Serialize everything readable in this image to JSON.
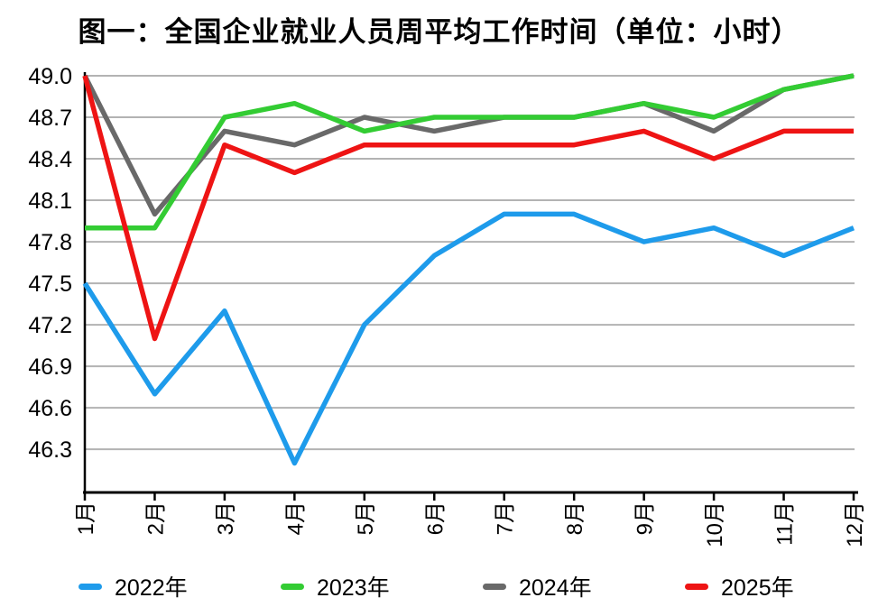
{
  "title": "图一：全国企业就业人员周平均工作时间（单位：小时）",
  "chart_data": {
    "type": "line",
    "title": "图一：全国企业就业人员周平均工作时间（单位：小时）",
    "unit": "小时",
    "categories": [
      "1月",
      "2月",
      "3月",
      "4月",
      "5月",
      "6月",
      "7月",
      "8月",
      "9月",
      "10月",
      "11月",
      "12月"
    ],
    "series": [
      {
        "name": "2022年",
        "color": "#1E9BEB",
        "values": [
          47.5,
          46.7,
          47.3,
          46.2,
          47.2,
          47.7,
          48.0,
          48.0,
          47.8,
          47.9,
          47.7,
          47.9
        ]
      },
      {
        "name": "2023年",
        "color": "#33CC33",
        "values": [
          47.9,
          47.9,
          48.7,
          48.8,
          48.6,
          48.7,
          48.7,
          48.7,
          48.8,
          48.7,
          48.9,
          49.0
        ]
      },
      {
        "name": "2024年",
        "color": "#696969",
        "values": [
          49.0,
          48.0,
          48.6,
          48.5,
          48.7,
          48.6,
          48.7,
          48.7,
          48.8,
          48.6,
          48.9,
          49.0
        ]
      },
      {
        "name": "2025年",
        "color": "#EE1414",
        "values": [
          49.0,
          47.1,
          48.5,
          48.3,
          48.5,
          48.5,
          48.5,
          48.5,
          48.6,
          48.4,
          48.6,
          48.6
        ]
      }
    ],
    "z_order": [
      "2022年",
      "2024年",
      "2023年",
      "2025年"
    ],
    "y_ticks": [
      49.0,
      48.7,
      48.4,
      48.1,
      47.8,
      47.5,
      47.2,
      46.9,
      46.6,
      46.3
    ],
    "ylim": [
      46.0,
      49.0
    ],
    "xlabel": "",
    "ylabel": "",
    "grid": true,
    "grid_color": "#B3B3B3",
    "axis_color": "#000000",
    "legend_position": "bottom"
  }
}
